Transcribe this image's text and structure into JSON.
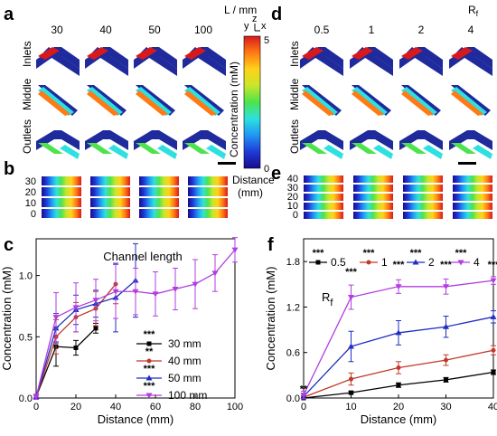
{
  "panels": {
    "a": {
      "label": "a",
      "header": "L / mm",
      "columns": [
        "30",
        "40",
        "50",
        "100"
      ],
      "rows": [
        "Inlets",
        "Middle",
        "Outlets"
      ],
      "scalebar_color": "#000000"
    },
    "d": {
      "label": "d",
      "header": "R",
      "header_sub": "f",
      "columns": [
        "0.5",
        "1",
        "2",
        "4"
      ],
      "rows": [
        "Inlets",
        "Middle",
        "Outlets"
      ]
    },
    "b": {
      "label": "b",
      "distance_ticks": [
        "30",
        "20",
        "10",
        "0"
      ]
    },
    "e": {
      "label": "e",
      "distance_ticks": [
        "40",
        "30",
        "20",
        "10",
        "0"
      ]
    },
    "colorbar": {
      "label": "Concentration (mM)",
      "max": "5",
      "min": "0",
      "axes_label": "y",
      "axes_z": "z",
      "axes_x": "x",
      "distance_label": "Distance",
      "distance_unit": "(mm)",
      "colors": [
        "#1a0a8c",
        "#1f3bd8",
        "#2196f3",
        "#2ee0e0",
        "#4de34d",
        "#c8e62a",
        "#ffd21a",
        "#ff7a14",
        "#d7191c"
      ]
    },
    "icons": {
      "scale_bar": "scale-bar-icon",
      "axes": "axis-triad-icon"
    }
  },
  "chart_data": [
    {
      "panel": "c",
      "type": "line",
      "title": "Channel length",
      "xlabel": "Distance (mm)",
      "ylabel": "Concentration (mM)",
      "xlim": [
        0,
        100
      ],
      "ylim": [
        0,
        1.3
      ],
      "xticks": [
        "0",
        "20",
        "40",
        "60",
        "80",
        "100"
      ],
      "yticks": [
        "0.0",
        "0.5",
        "1.0"
      ],
      "legend_position": "lower-right",
      "series": [
        {
          "name": "30 mm",
          "stars": "***",
          "color": "#000000",
          "marker": "square",
          "x": [
            0,
            10,
            20,
            30
          ],
          "y": [
            0.01,
            0.42,
            0.41,
            0.57
          ],
          "err": [
            0.02,
            0.16,
            0.06,
            0.04
          ]
        },
        {
          "name": "40 mm",
          "stars": "**",
          "color": "#c0392b",
          "marker": "circle",
          "x": [
            0,
            10,
            20,
            30,
            40
          ],
          "y": [
            0.01,
            0.5,
            0.66,
            0.73,
            0.93
          ],
          "err": [
            0.02,
            0.14,
            0.12,
            0.14,
            0.16
          ]
        },
        {
          "name": "50 mm",
          "stars": "***",
          "color": "#1f2fbf",
          "marker": "triangle-up",
          "x": [
            0,
            10,
            20,
            30,
            40,
            50
          ],
          "y": [
            0.01,
            0.57,
            0.72,
            0.77,
            0.82,
            0.96
          ],
          "err": [
            0.02,
            0.12,
            0.12,
            0.11,
            0.28,
            0.3
          ]
        },
        {
          "name": "100 mm",
          "stars": "***",
          "color": "#b03ee0",
          "marker": "triangle-down",
          "x": [
            0,
            10,
            20,
            30,
            40,
            50,
            60,
            70,
            80,
            90,
            100
          ],
          "y": [
            0.01,
            0.66,
            0.74,
            0.8,
            0.87,
            0.87,
            0.85,
            0.89,
            0.93,
            1.02,
            1.21
          ],
          "err": [
            0.02,
            0.2,
            0.2,
            0.17,
            0.22,
            0.19,
            0.18,
            0.17,
            0.2,
            0.15,
            0.1
          ]
        }
      ]
    },
    {
      "panel": "f",
      "type": "line",
      "title": "R",
      "title_sub": "f",
      "xlabel": "Distance (mm)",
      "ylabel": "Concentration (mM)",
      "xlim": [
        0,
        40
      ],
      "ylim": [
        0,
        2.1
      ],
      "xticks": [
        "0",
        "10",
        "20",
        "30",
        "40"
      ],
      "yticks": [
        "0.0",
        "0.6",
        "1.2",
        "1.8"
      ],
      "legend_position": "top",
      "annotations": [
        {
          "text": "**",
          "x": 0,
          "y": 0.08
        },
        {
          "text": "***",
          "x": 10,
          "y": 1.62
        },
        {
          "text": "***",
          "x": 20,
          "y": 1.72
        },
        {
          "text": "***",
          "x": 30,
          "y": 1.72
        },
        {
          "text": "***",
          "x": 40,
          "y": 1.72
        }
      ],
      "series": [
        {
          "name": "0.5",
          "stars": "***",
          "color": "#000000",
          "marker": "square",
          "x": [
            0,
            10,
            20,
            30,
            40
          ],
          "y": [
            0.0,
            0.07,
            0.17,
            0.24,
            0.34
          ],
          "err": [
            0.01,
            0.02,
            0.03,
            0.03,
            0.03
          ]
        },
        {
          "name": "1",
          "stars": "***",
          "color": "#c0392b",
          "marker": "circle",
          "x": [
            0,
            10,
            20,
            30,
            40
          ],
          "y": [
            0.01,
            0.25,
            0.4,
            0.5,
            0.63
          ],
          "err": [
            0.02,
            0.08,
            0.08,
            0.07,
            0.06
          ]
        },
        {
          "name": "2",
          "stars": "***",
          "color": "#1f2fbf",
          "marker": "triangle-up",
          "x": [
            0,
            10,
            20,
            30,
            40
          ],
          "y": [
            0.02,
            0.68,
            0.86,
            0.94,
            1.07
          ],
          "err": [
            0.03,
            0.2,
            0.16,
            0.14,
            0.08
          ]
        },
        {
          "name": "4",
          "stars": "***",
          "color": "#b03ee0",
          "marker": "triangle-down",
          "x": [
            0,
            10,
            20,
            30,
            40
          ],
          "y": [
            0.04,
            1.33,
            1.47,
            1.47,
            1.55
          ],
          "err": [
            0.05,
            0.16,
            0.09,
            0.1,
            0.05
          ]
        }
      ]
    }
  ]
}
